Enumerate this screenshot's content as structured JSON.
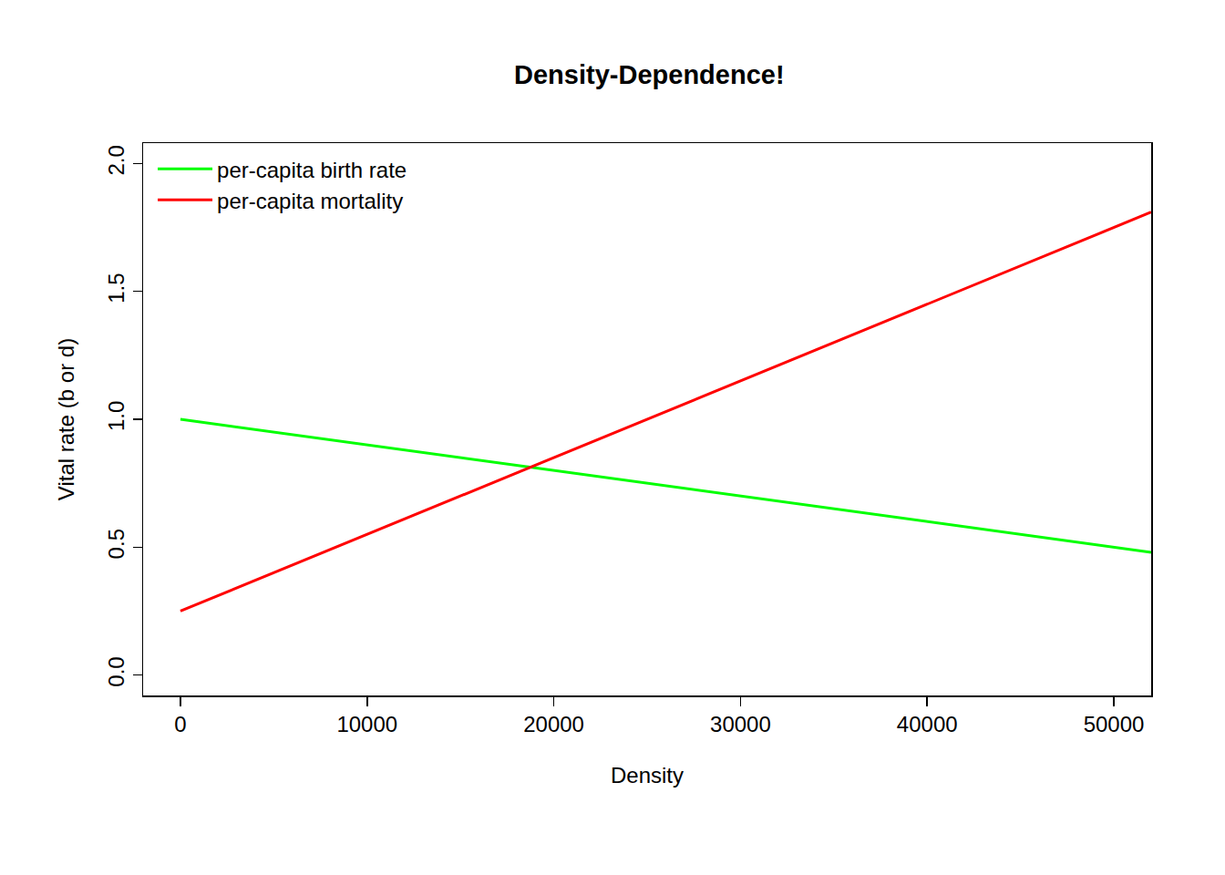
{
  "chart_data": {
    "type": "line",
    "title": "Density-Dependence!",
    "x_label": "Density",
    "y_label": "Vital rate (b or d)",
    "x": [
      0,
      10000,
      20000,
      30000,
      40000,
      50000,
      52000
    ],
    "series": [
      {
        "name": "per-capita birth rate",
        "color": "#00ff00",
        "values": [
          1.0,
          0.9,
          0.8,
          0.7,
          0.6,
          0.5,
          0.48
        ]
      },
      {
        "name": "per-capita mortality",
        "color": "#ff0000",
        "values": [
          0.25,
          0.55,
          0.85,
          1.15,
          1.45,
          1.75,
          1.81
        ]
      }
    ],
    "xlim": [
      -2000,
      52000
    ],
    "xticks": [
      0,
      10000,
      20000,
      30000,
      40000,
      50000
    ],
    "ylim": [
      -0.08,
      2.08
    ],
    "yticks": [
      {
        "value": 0,
        "label": "0.0"
      },
      0.5,
      {
        "value": 1,
        "label": "1.0"
      },
      1.5,
      {
        "value": 2,
        "label": "2.0"
      }
    ],
    "grid": false,
    "legend": "top-left"
  }
}
